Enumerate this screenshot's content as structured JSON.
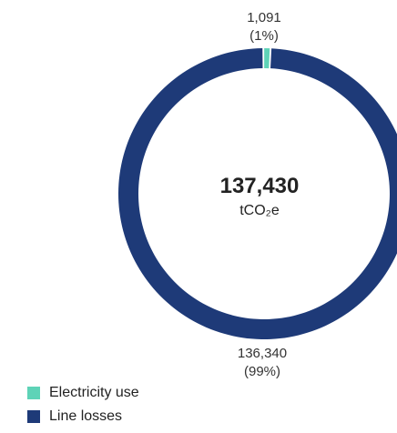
{
  "chart_data": {
    "type": "pie",
    "style": "donut",
    "center_value": "137,430",
    "center_unit": "tCO₂e",
    "slices": [
      {
        "name": "Electricity use",
        "value": 1091,
        "value_label": "1,091",
        "percent_label": "(1%)",
        "color": "#5ED3B7"
      },
      {
        "name": "Line losses",
        "value": 136340,
        "value_label": "136,340",
        "percent_label": "(99%)",
        "color": "#1E3A78"
      }
    ],
    "legend_position": "bottom-left"
  }
}
